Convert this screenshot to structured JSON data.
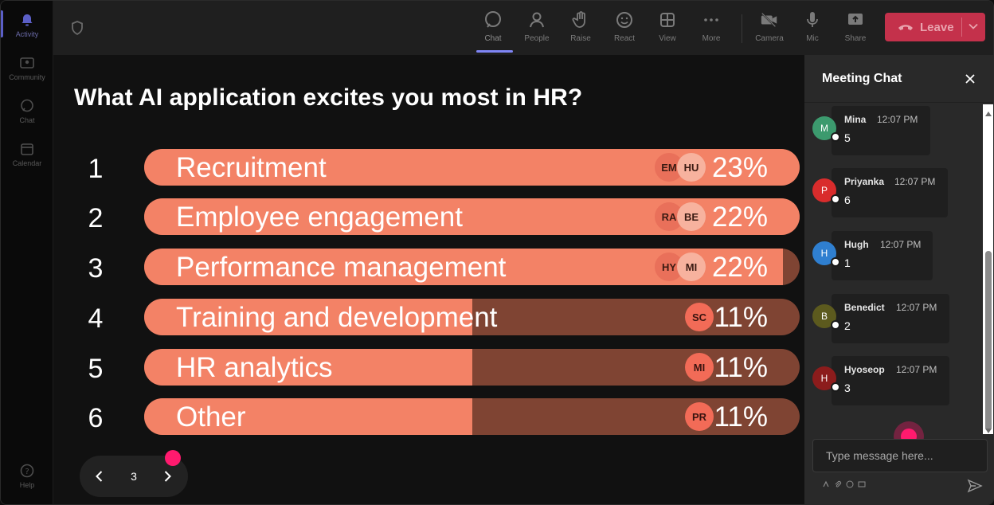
{
  "rail": {
    "items": [
      {
        "label": "Activity",
        "icon": "bell-icon"
      },
      {
        "label": "Community",
        "icon": "community-icon"
      },
      {
        "label": "Chat",
        "icon": "chat-icon"
      },
      {
        "label": "Calendar",
        "icon": "calendar-icon"
      }
    ],
    "help_label": "Help"
  },
  "toolbar": {
    "chat": "Chat",
    "people": "People",
    "raise": "Raise",
    "react": "React",
    "view": "View",
    "more": "More",
    "camera": "Camera",
    "mic": "Mic",
    "share": "Share",
    "leave": "Leave"
  },
  "poll": {
    "question": "What AI application excites you most in HR?",
    "options": [
      {
        "rank": "1",
        "label": "Recruitment",
        "percent": "23%",
        "fill": 1.0,
        "avatars": [
          "EM",
          "HU"
        ]
      },
      {
        "rank": "2",
        "label": "Employee engagement",
        "percent": "22%",
        "fill": 1.0,
        "avatars": [
          "RA",
          "BE"
        ]
      },
      {
        "rank": "3",
        "label": "Performance management",
        "percent": "22%",
        "fill": 0.975,
        "avatars": [
          "HY",
          "MI"
        ]
      },
      {
        "rank": "4",
        "label": "Training and development",
        "percent": "11%",
        "fill": 0.5,
        "avatars": [
          "SC"
        ]
      },
      {
        "rank": "5",
        "label": "HR analytics",
        "percent": "11%",
        "fill": 0.5,
        "avatars": [
          "MI"
        ]
      },
      {
        "rank": "6",
        "label": "Other",
        "percent": "11%",
        "fill": 0.5,
        "avatars": [
          "PR"
        ]
      }
    ],
    "page": "3"
  },
  "chat": {
    "title": "Meeting Chat",
    "messages": [
      {
        "initial": "M",
        "name": "Mina",
        "time": "12:07 PM",
        "text": "5",
        "color": "#3c9a6e"
      },
      {
        "initial": "P",
        "name": "Priyanka",
        "time": "12:07 PM",
        "text": "6",
        "color": "#d92c2c"
      },
      {
        "initial": "H",
        "name": "Hugh",
        "time": "12:07 PM",
        "text": "1",
        "color": "#2f7fd0"
      },
      {
        "initial": "B",
        "name": "Benedict",
        "time": "12:07 PM",
        "text": "2",
        "color": "#5c5a1e"
      },
      {
        "initial": "H",
        "name": "Hyoseop",
        "time": "12:07 PM",
        "text": "3",
        "color": "#8c1c1c"
      }
    ],
    "placeholder": "Type message here..."
  },
  "colors": {
    "bar_fill": "#f38266",
    "bar_track": "#7f4433",
    "leave": "#c4314b",
    "accent": "#7f85f5",
    "cursor_dot": "#ff1a6e"
  }
}
